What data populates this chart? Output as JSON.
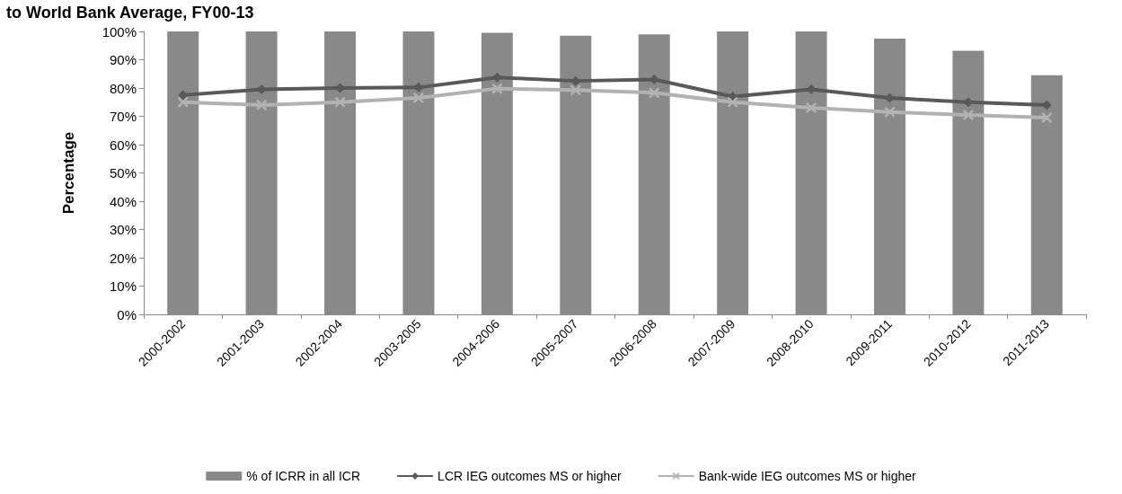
{
  "chart_data": {
    "type": "bar",
    "title": "to World Bank Average, FY00-13",
    "ylabel": "Percentage",
    "categories": [
      "2000-2002",
      "2001-2003",
      "2002-2004",
      "2003-2005",
      "2004-2006",
      "2005-2007",
      "2006-2008",
      "2007-2009",
      "2008-2010",
      "2009-2011",
      "2010-2012",
      "2011-2013"
    ],
    "series": [
      {
        "name": "% of ICRR in all ICR",
        "color": "#898989",
        "values": [
          100,
          100,
          100,
          100,
          99.5,
          98.5,
          99,
          100,
          100,
          97.5,
          93.2,
          84.5
        ]
      },
      {
        "name": "LCR IEG outcomes MS or higher",
        "type": "line",
        "marker": "diamond",
        "color": "#595959",
        "values": [
          77.5,
          79.5,
          80,
          80.2,
          83.7,
          82.5,
          83,
          77,
          79.5,
          76.5,
          75,
          74
        ]
      },
      {
        "name": "Bank-wide IEG outcomes MS or higher",
        "type": "line",
        "marker": "cross",
        "color": "#b2b2b2",
        "values": [
          75,
          74,
          75,
          76.5,
          79.8,
          79.3,
          78.3,
          75,
          73,
          71.5,
          70.5,
          69.5
        ]
      }
    ],
    "ylim": [
      0,
      100
    ],
    "yticks": [
      {
        "value": 0,
        "label": "0%"
      },
      {
        "value": 10,
        "label": "10%"
      },
      {
        "value": 20,
        "label": "20%"
      },
      {
        "value": 30,
        "label": "30%"
      },
      {
        "value": 40,
        "label": "40%"
      },
      {
        "value": 50,
        "label": "50%"
      },
      {
        "value": 60,
        "label": "60%"
      },
      {
        "value": 70,
        "label": "70%"
      },
      {
        "value": 80,
        "label": "80%"
      },
      {
        "value": 90,
        "label": "90%"
      },
      {
        "value": 100,
        "label": "100%"
      }
    ],
    "legend": "bottom"
  }
}
